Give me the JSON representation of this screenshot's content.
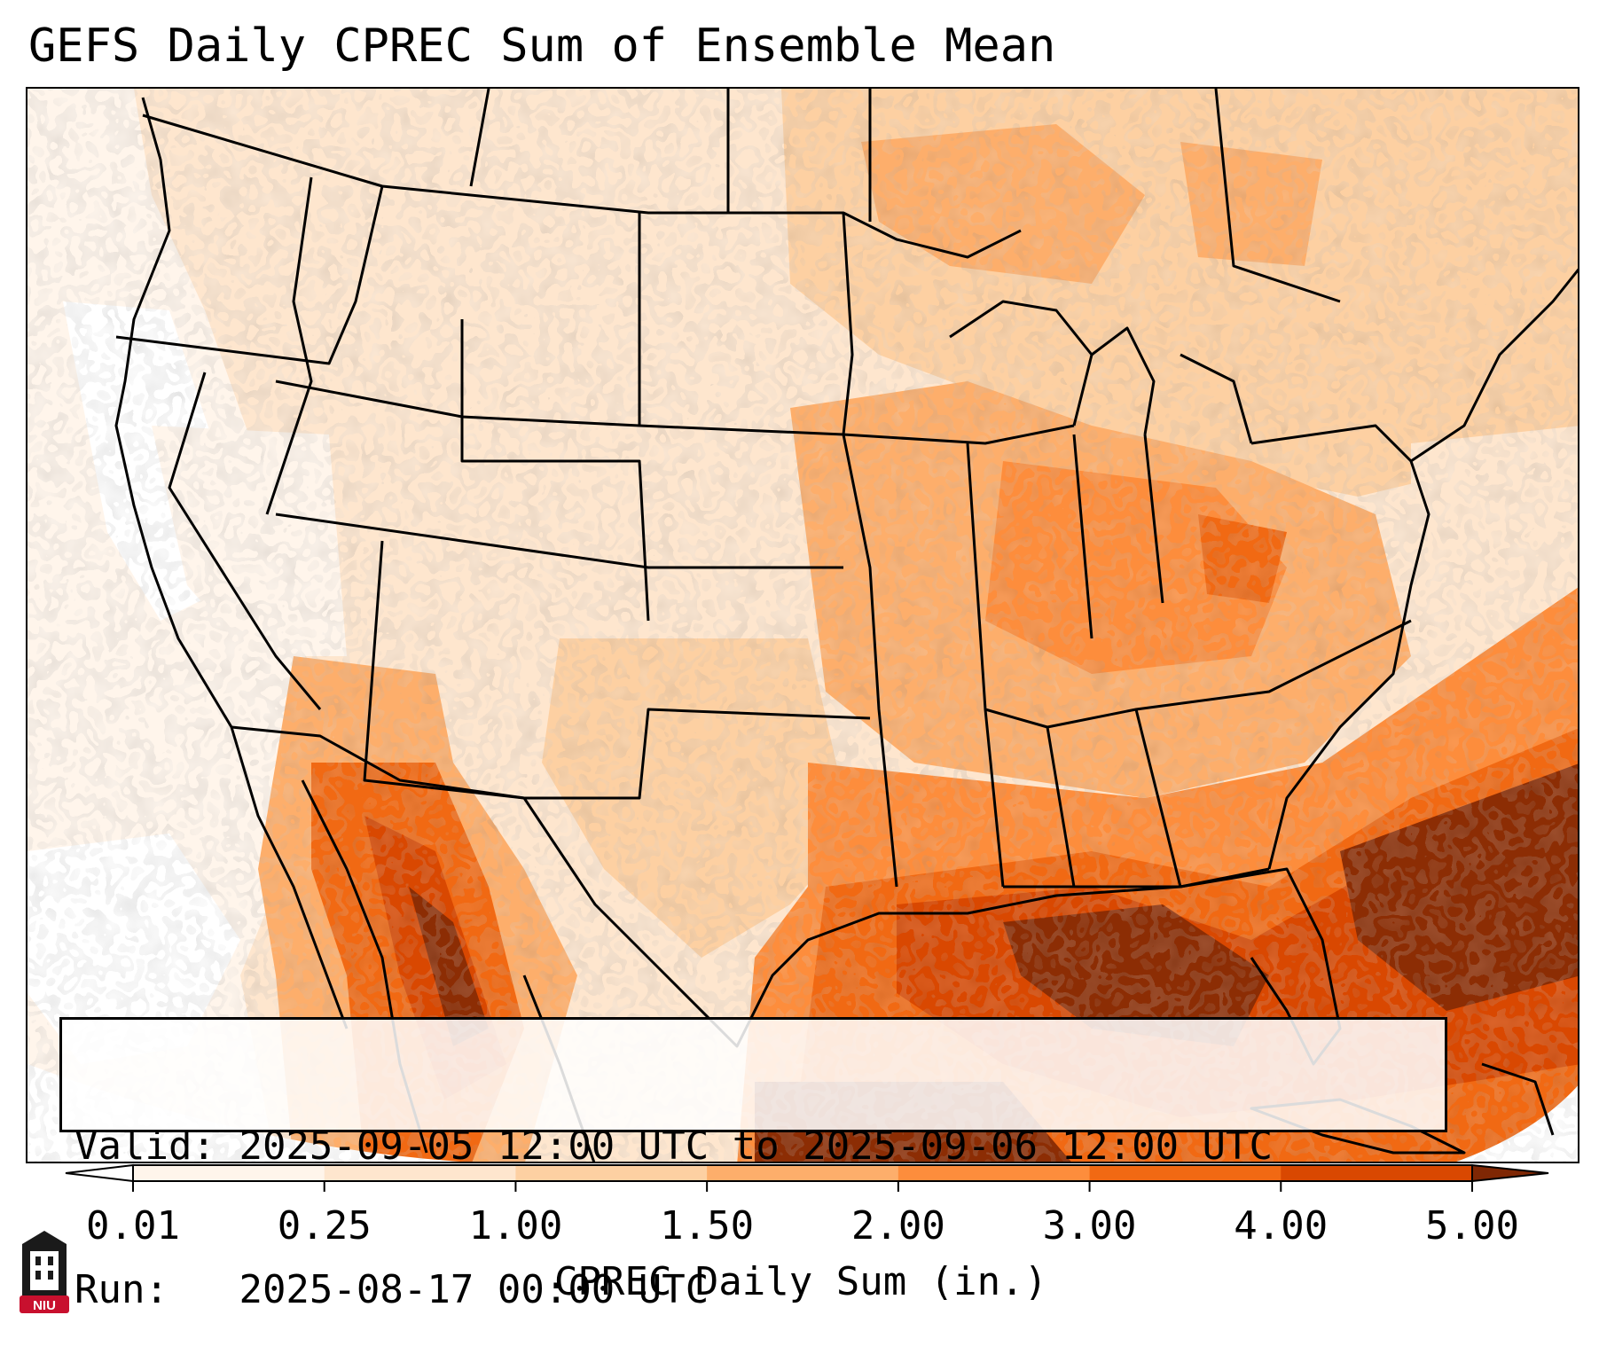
{
  "title": "GEFS Daily CPREC Sum of Ensemble Mean",
  "info_box": {
    "valid_label": "Valid:",
    "valid_value": "2025-09-05 12:00 UTC to 2025-09-06 12:00 UTC",
    "run_label": "Run:",
    "run_value": "2025-08-17 00:00 UTC"
  },
  "colorbar": {
    "label": "CPREC Daily Sum (in.)",
    "ticks": [
      "0.01",
      "0.25",
      "1.00",
      "1.50",
      "2.00",
      "3.00",
      "4.00",
      "5.00"
    ],
    "colors": [
      "#fff5eb",
      "#fee6ce",
      "#fdd0a2",
      "#fdae6b",
      "#fd8d3c",
      "#f16913",
      "#d94801",
      "#8c2d04"
    ],
    "under_color": "#ffffff",
    "over_color": "#7f2704",
    "extend": "both"
  },
  "logo": {
    "text": "NIU",
    "colors": {
      "primary": "#c8102e",
      "dark": "#1a1a1a"
    }
  },
  "map": {
    "projection": "conic (CONUS)",
    "boundaries": [
      "states",
      "countries",
      "coastlines"
    ]
  }
}
